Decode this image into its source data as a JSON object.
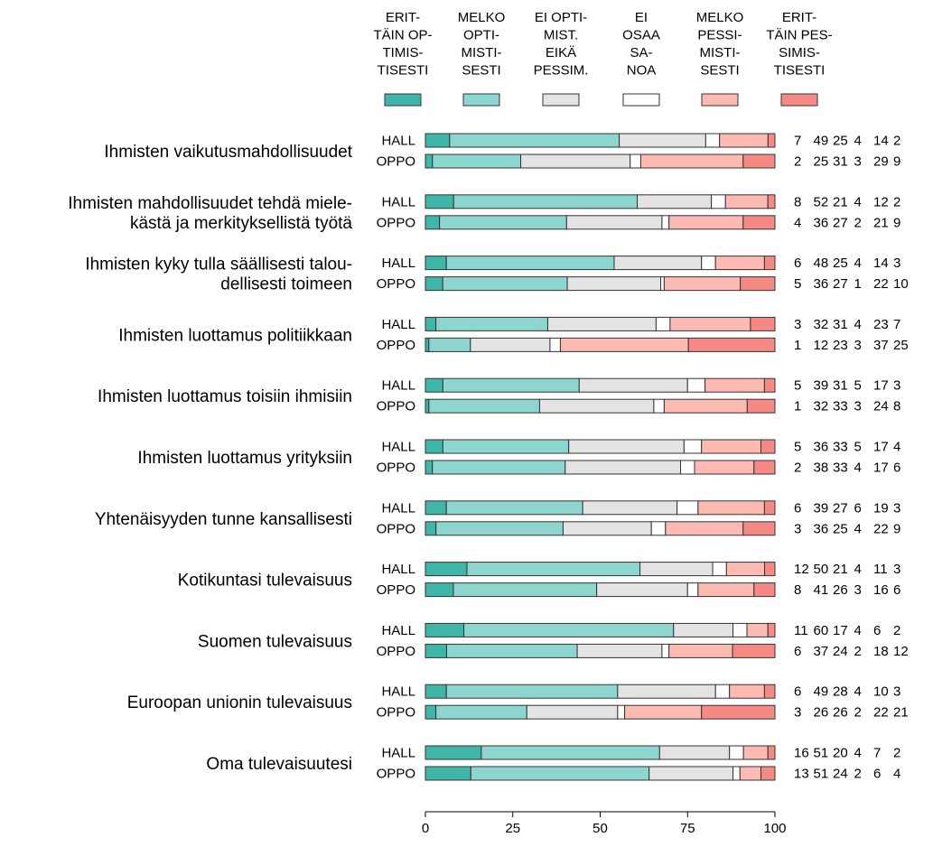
{
  "chart_data": {
    "type": "bar",
    "orientation": "horizontal",
    "stacked": true,
    "xlim": [
      0,
      100
    ],
    "xticks": [
      0,
      25,
      50,
      75,
      100
    ],
    "grid": false,
    "legend_position": "top",
    "groups": [
      "HALL",
      "OPPO"
    ],
    "series": [
      {
        "name": [
          "ERIT-",
          "TÄIN OP-",
          "TIMIS-",
          "TISESTI"
        ],
        "color": "#40b6a8"
      },
      {
        "name": [
          "MELKO",
          "OPTI-",
          "MISTI-",
          "SESTI"
        ],
        "color": "#8dd6cf"
      },
      {
        "name": [
          "EI OPTI-",
          "MIST.",
          "EIKÄ",
          "PESSIM."
        ],
        "color": "#e3e3e3"
      },
      {
        "name": [
          "EI",
          "OSAA",
          "SA-",
          "NOA"
        ],
        "color": "#ffffff"
      },
      {
        "name": [
          "MELKO",
          "PESSI-",
          "MISTI-",
          "SESTI"
        ],
        "color": "#fdbab2"
      },
      {
        "name": [
          "ERIT-",
          "TÄIN PES-",
          "SIMIS-",
          "TISESTI"
        ],
        "color": "#f58a84"
      }
    ],
    "categories": [
      {
        "label": [
          "Ihmisten vaikutusmahdollisuudet"
        ],
        "values": {
          "HALL": [
            7,
            49,
            25,
            4,
            14,
            2
          ],
          "OPPO": [
            2,
            25,
            31,
            3,
            29,
            9
          ]
        }
      },
      {
        "label": [
          "Ihmisten mahdollisuudet tehdä miele-",
          "kästä ja merkityksellistä työtä"
        ],
        "values": {
          "HALL": [
            8,
            52,
            21,
            4,
            12,
            2
          ],
          "OPPO": [
            4,
            36,
            27,
            2,
            21,
            9
          ]
        }
      },
      {
        "label": [
          "Ihmisten kyky tulla säällisesti talou-",
          "dellisesti toimeen"
        ],
        "values": {
          "HALL": [
            6,
            48,
            25,
            4,
            14,
            3
          ],
          "OPPO": [
            5,
            36,
            27,
            1,
            22,
            10
          ]
        }
      },
      {
        "label": [
          "Ihmisten luottamus politiikkaan"
        ],
        "values": {
          "HALL": [
            3,
            32,
            31,
            4,
            23,
            7
          ],
          "OPPO": [
            1,
            12,
            23,
            3,
            37,
            25
          ]
        }
      },
      {
        "label": [
          "Ihmisten luottamus toisiin ihmisiin"
        ],
        "values": {
          "HALL": [
            5,
            39,
            31,
            5,
            17,
            3
          ],
          "OPPO": [
            1,
            32,
            33,
            3,
            24,
            8
          ]
        }
      },
      {
        "label": [
          "Ihmisten luottamus yrityksiin"
        ],
        "values": {
          "HALL": [
            5,
            36,
            33,
            5,
            17,
            4
          ],
          "OPPO": [
            2,
            38,
            33,
            4,
            17,
            6
          ]
        }
      },
      {
        "label": [
          "Yhtenäisyyden tunne kansallisesti"
        ],
        "values": {
          "HALL": [
            6,
            39,
            27,
            6,
            19,
            3
          ],
          "OPPO": [
            3,
            36,
            25,
            4,
            22,
            9
          ]
        }
      },
      {
        "label": [
          "Kotikuntasi tulevaisuus"
        ],
        "values": {
          "HALL": [
            12,
            50,
            21,
            4,
            11,
            3
          ],
          "OPPO": [
            8,
            41,
            26,
            3,
            16,
            6
          ]
        }
      },
      {
        "label": [
          "Suomen tulevaisuus"
        ],
        "values": {
          "HALL": [
            11,
            60,
            17,
            4,
            6,
            2
          ],
          "OPPO": [
            6,
            37,
            24,
            2,
            18,
            12
          ]
        }
      },
      {
        "label": [
          "Euroopan unionin tulevaisuus"
        ],
        "values": {
          "HALL": [
            6,
            49,
            28,
            4,
            10,
            3
          ],
          "OPPO": [
            3,
            26,
            26,
            2,
            22,
            21
          ]
        }
      },
      {
        "label": [
          "Oma tulevaisuutesi"
        ],
        "values": {
          "HALL": [
            16,
            51,
            20,
            4,
            7,
            2
          ],
          "OPPO": [
            13,
            51,
            24,
            2,
            6,
            4
          ]
        }
      }
    ]
  }
}
